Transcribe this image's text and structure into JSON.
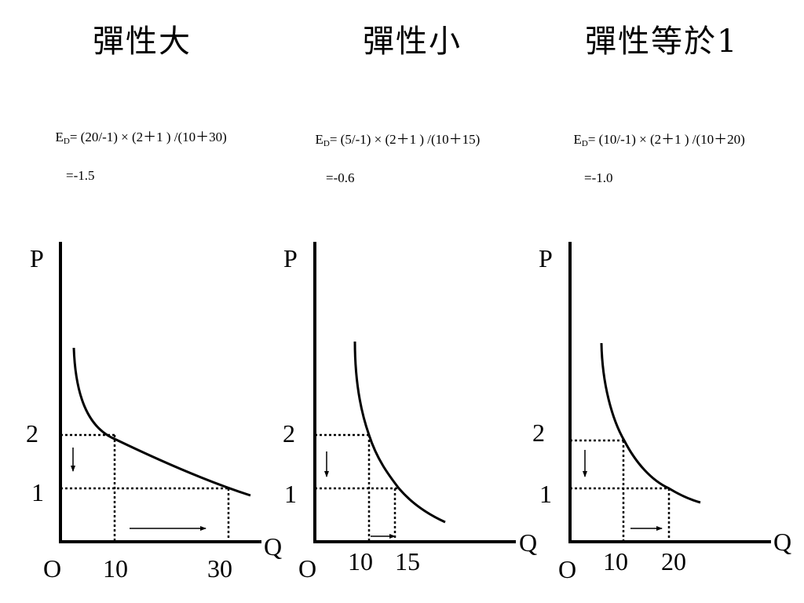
{
  "panels": [
    {
      "title": "彈性大",
      "formula_prefix": "E",
      "formula_subscript": "D",
      "formula_body": "= (20/-1) × (2＋1 ) /(10＋30)",
      "formula_result": "=-1.5",
      "axis_p": "P",
      "axis_q": "Q",
      "origin": "O",
      "price_high": "2",
      "price_low": "1",
      "qty_low": "10",
      "qty_high": "30"
    },
    {
      "title": "彈性小",
      "formula_prefix": "E",
      "formula_subscript": "D",
      "formula_body": "= (5/-1) × (2＋1 ) /(10＋15)",
      "formula_result": "=-0.6",
      "axis_p": "P",
      "axis_q": "Q",
      "origin": "O",
      "price_high": "2",
      "price_low": "1",
      "qty_low": "10",
      "qty_high": "15"
    },
    {
      "title": "彈性等於1",
      "formula_prefix": "E",
      "formula_subscript": "D",
      "formula_body": "= (10/-1) × (2＋1 ) /(10＋20)",
      "formula_result": "=-1.0",
      "axis_p": "P",
      "axis_q": "Q",
      "origin": "O",
      "price_high": "2",
      "price_low": "1",
      "qty_low": "10",
      "qty_high": "20"
    }
  ]
}
